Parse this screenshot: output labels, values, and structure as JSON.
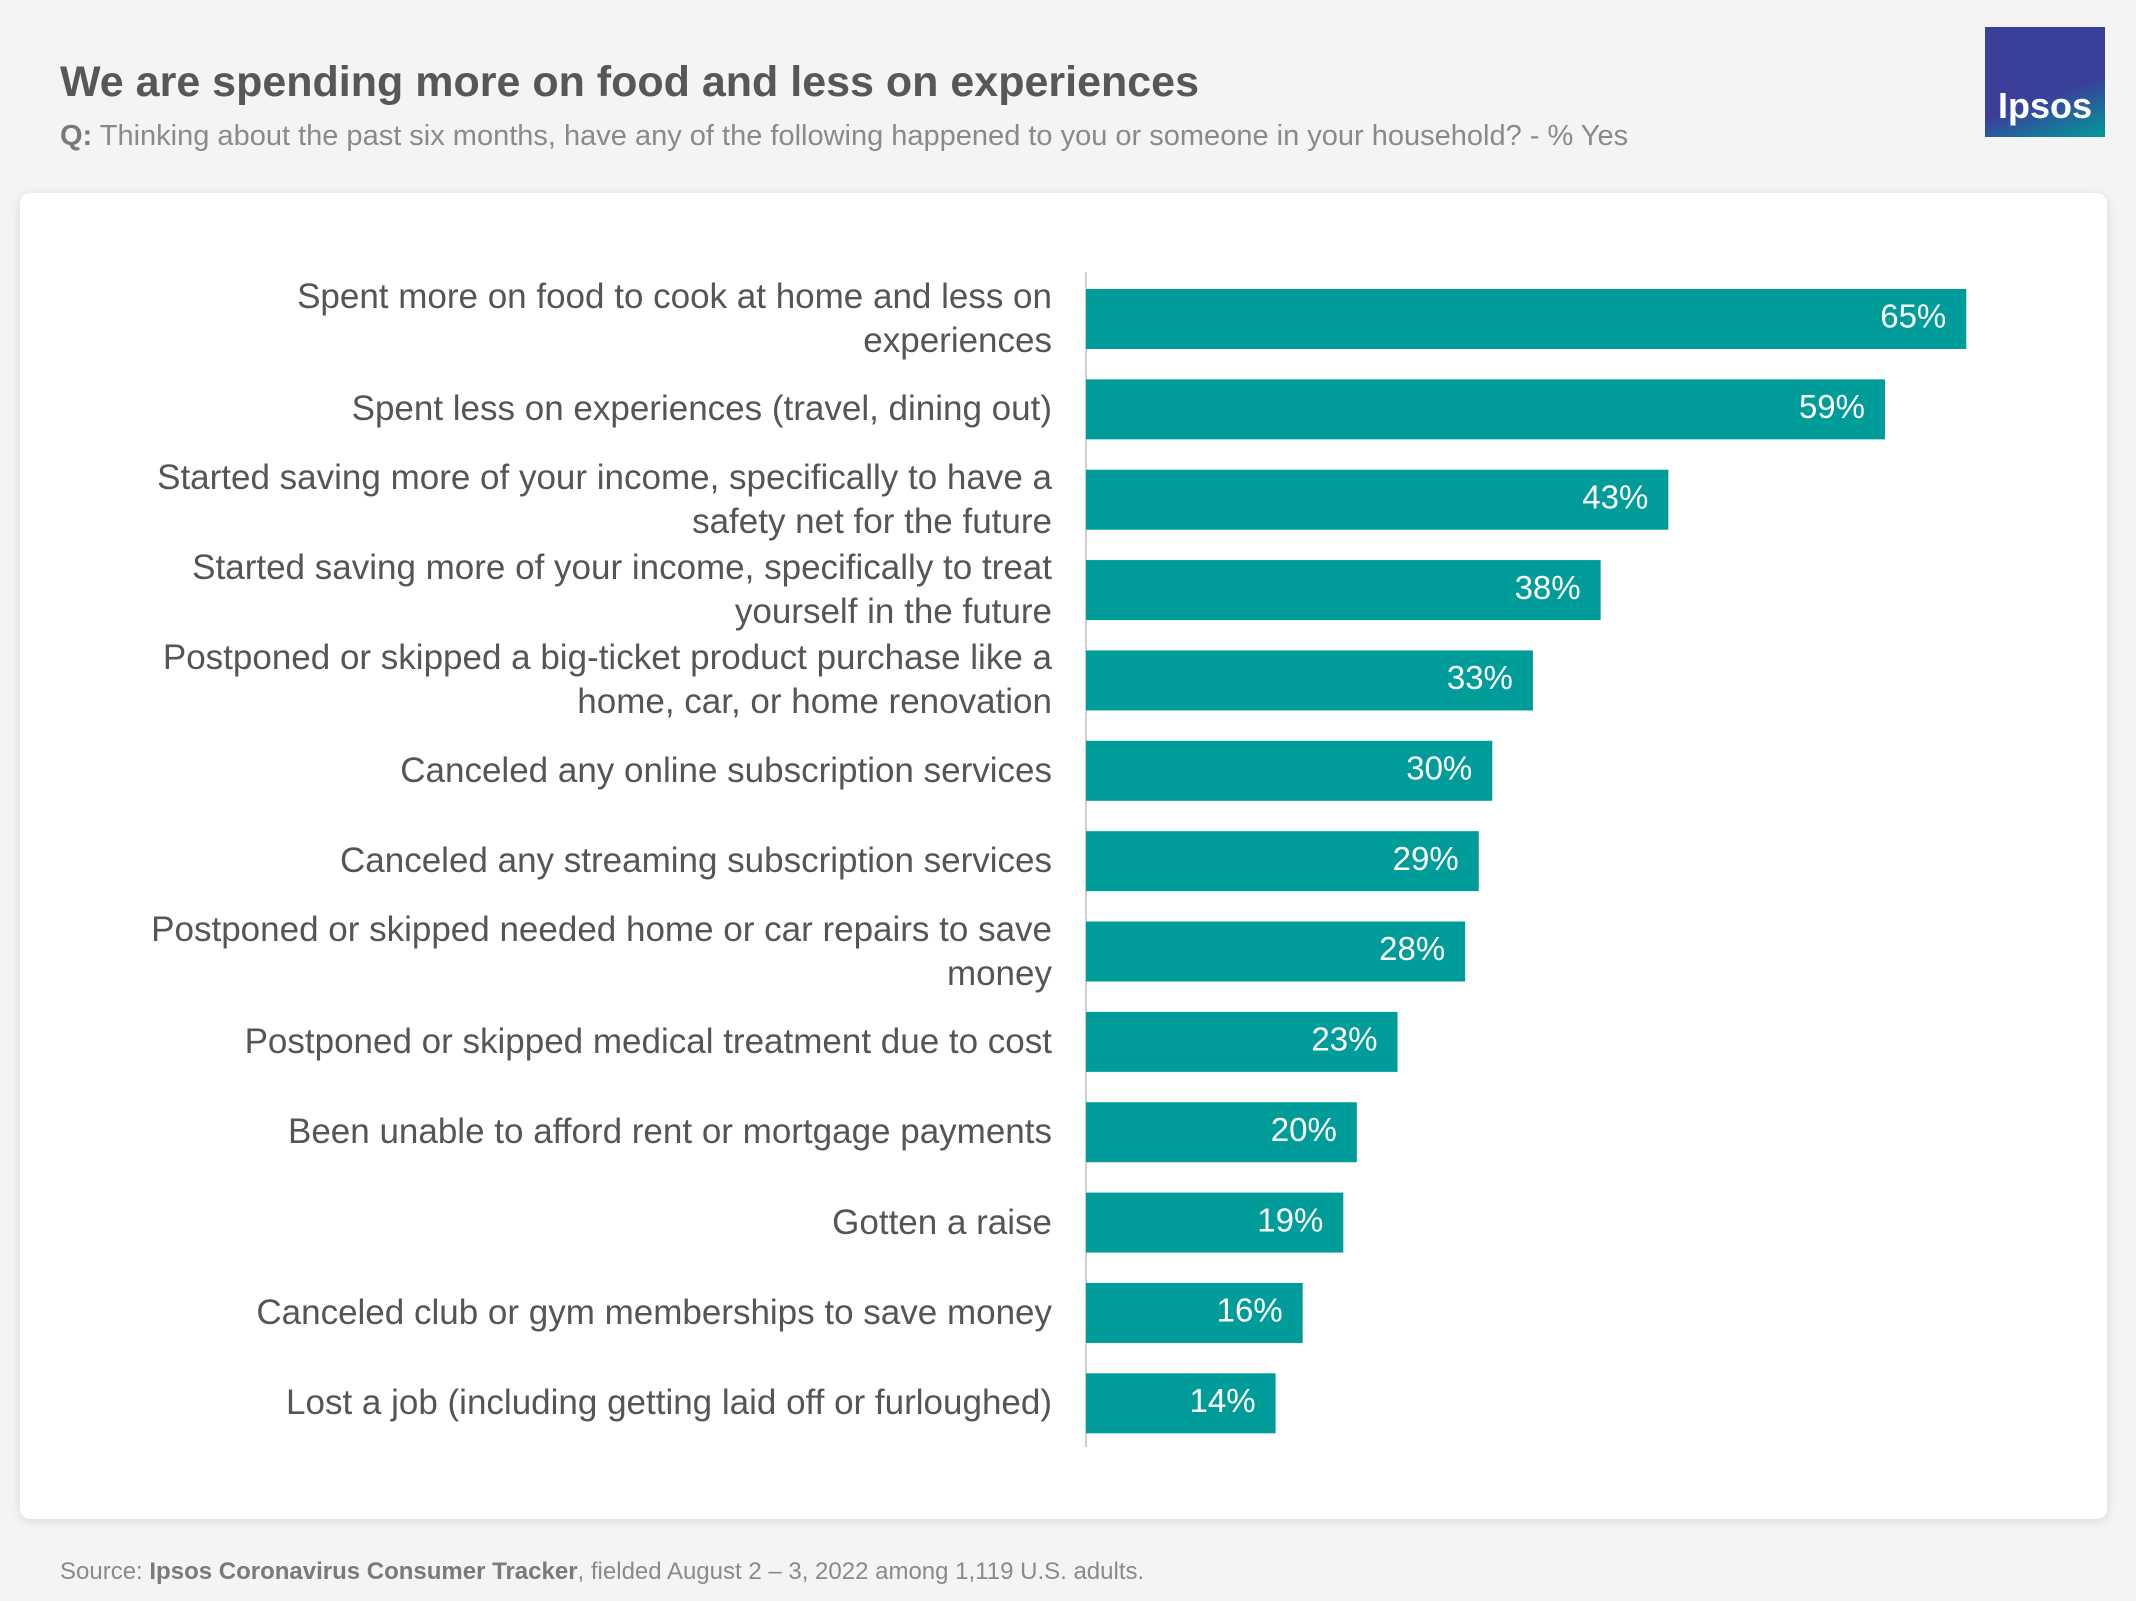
{
  "chart_data": {
    "type": "barh",
    "title": "We are spending more on food and less on experiences",
    "question_label": "Q:",
    "subtitle": "Thinking about the past six months, have any of the following happened to you or someone in your household? - % Yes",
    "categories": [
      "Spent more on food to cook at home and less on experiences",
      "Spent less on experiences (travel, dining out)",
      "Started saving more of your income, specifically to have a safety net for the future",
      "Started saving more of your income, specifically to treat yourself in the future",
      "Postponed or skipped a big-ticket product purchase like a home, car, or home renovation",
      "Canceled any online subscription services",
      "Canceled any streaming subscription services",
      "Postponed or skipped needed home or car repairs to save money",
      "Postponed or skipped medical treatment due to cost",
      "Been unable to afford rent or mortgage payments",
      "Gotten a raise",
      "Canceled club or gym memberships to save money",
      "Lost a job (including getting laid off or furloughed)"
    ],
    "values": [
      65,
      59,
      43,
      38,
      33,
      30,
      29,
      28,
      23,
      20,
      19,
      16,
      14
    ],
    "value_labels": [
      "65%",
      "59%",
      "43%",
      "38%",
      "33%",
      "30%",
      "29%",
      "28%",
      "23%",
      "20%",
      "19%",
      "16%",
      "14%"
    ],
    "color": "#009c99",
    "xlim": [
      0,
      70
    ],
    "source_label": "Source:",
    "source_name": "Ipsos Coronavirus Consumer Tracker",
    "source_detail": ", fielded August 2 – 3, 2022 among 1,119 U.S. adults.",
    "logo": "Ipsos"
  }
}
